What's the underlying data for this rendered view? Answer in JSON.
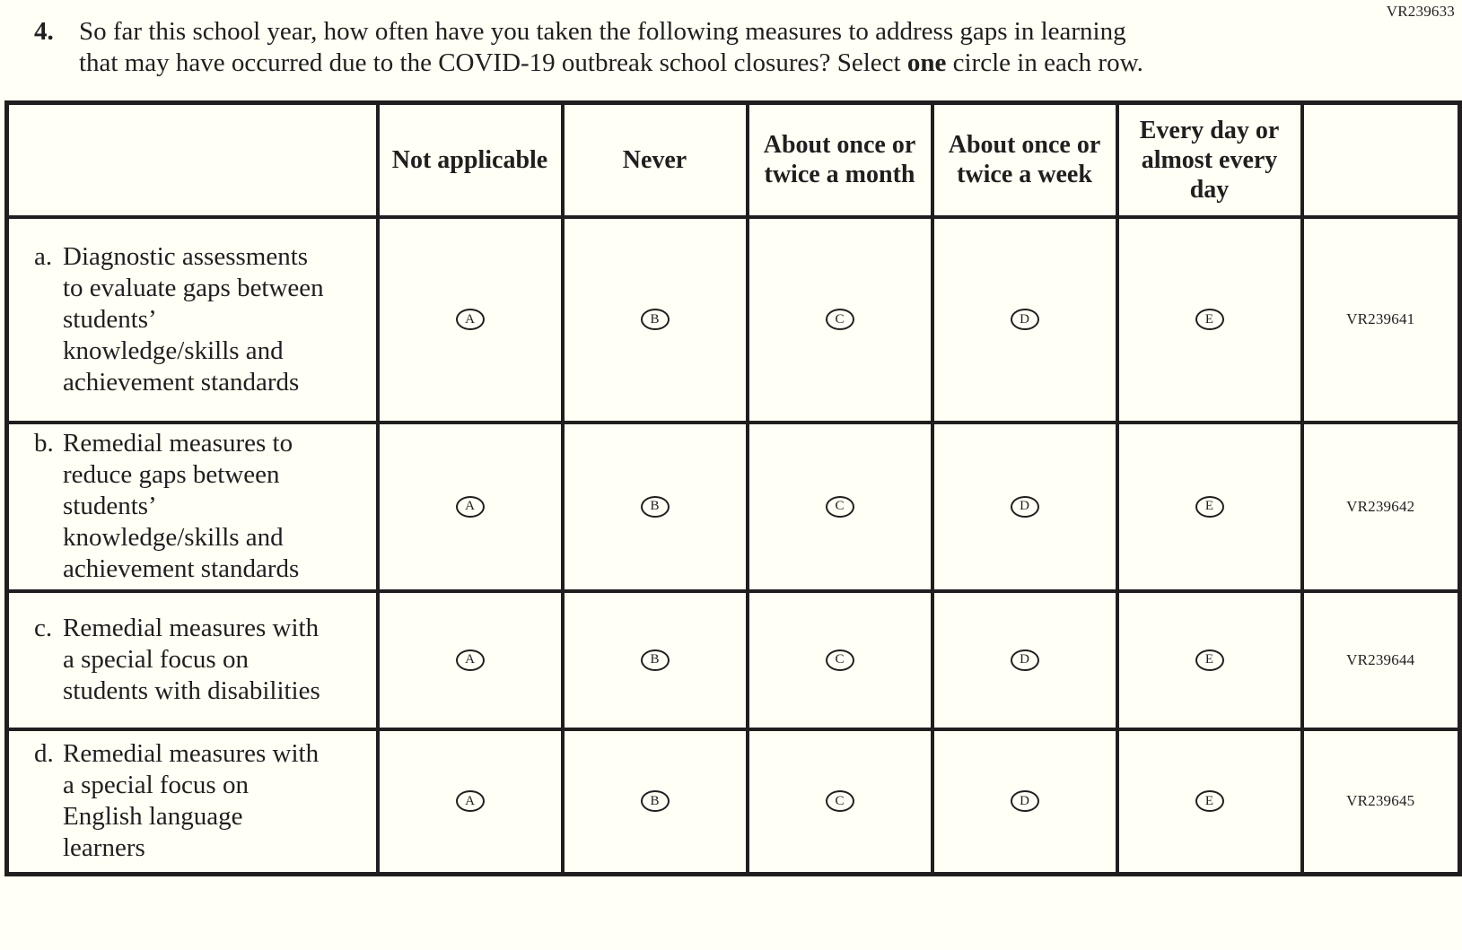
{
  "form_code": "VR239633",
  "colors": {
    "background": "#FFFFF5",
    "ink": "#221E1F"
  },
  "question": {
    "number": "4.",
    "text_before_bold": "So far this school year, how often have you taken the following measures to address gaps in learning that may have occurred due to the COVID-19 outbreak school closures? Select ",
    "bold_word": "one",
    "text_after_bold": " circle in each row."
  },
  "table": {
    "columns": [
      "Not applicable",
      "Never",
      "About once or twice a month",
      "About once or twice a week",
      "Every day or almost every day"
    ],
    "options": [
      "A",
      "B",
      "C",
      "D",
      "E"
    ],
    "rows": [
      {
        "letter": "a.",
        "label": "Diagnostic assessments to evaluate gaps between students’ knowledge/skills and achievement standards",
        "code": "VR239641"
      },
      {
        "letter": "b.",
        "label": "Remedial measures to reduce gaps between students’ knowledge/skills and achievement standards",
        "code": "VR239642"
      },
      {
        "letter": "c.",
        "label": "Remedial measures with a special focus on students with disabilities",
        "code": "VR239644"
      },
      {
        "letter": "d.",
        "label": "Remedial measures with a special focus on English language learners",
        "code": "VR239645"
      }
    ]
  }
}
